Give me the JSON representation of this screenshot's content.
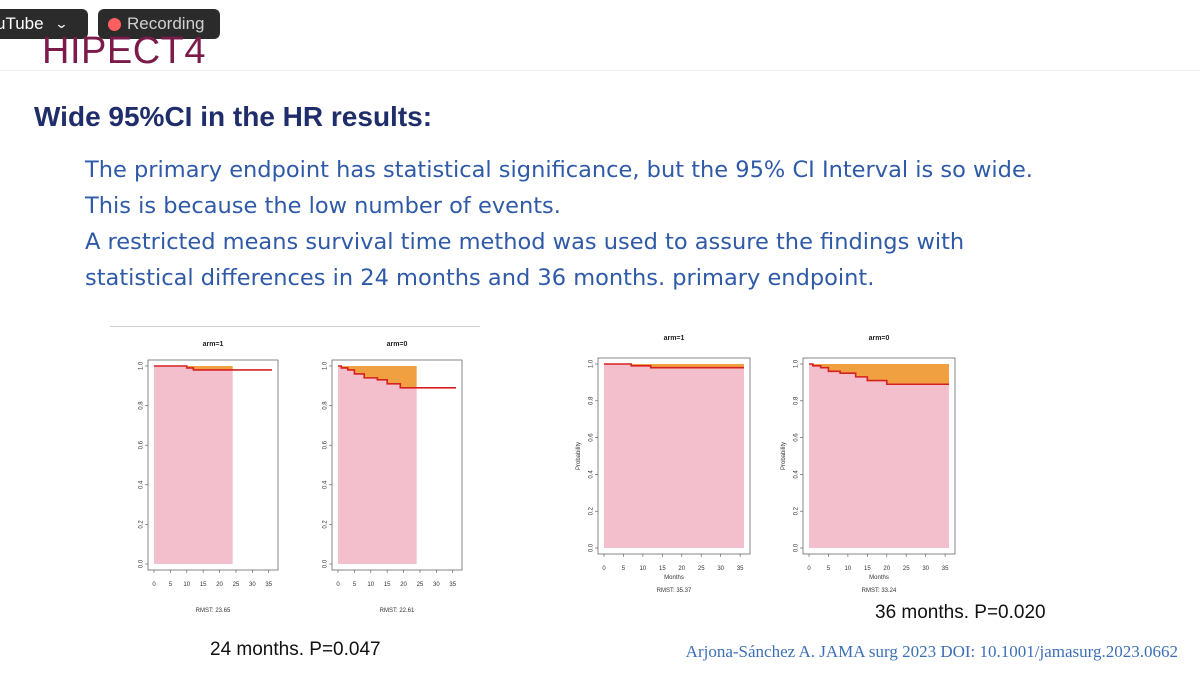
{
  "overlay": {
    "app_label": "uTube",
    "recording_label": "Recording",
    "accent_red": "#ff5f5f"
  },
  "slide": {
    "title": "HIPECT4",
    "heading": "Wide 95%CI in the HR results:",
    "lines": [
      "The primary endpoint has statistical significance, but the 95% CI Interval is so wide.",
      "This is because the low number of events.",
      "A restricted means survival time method was used to assure the findings with",
      "statistical differences in 24 months and 36 months. primary endpoint."
    ],
    "caption_24": "24 months. P=0.047",
    "caption_36": "36 months. P=0.020",
    "citation": "Arjona-Sánchez A. JAMA surg 2023 DOI: 10.1001/jamasurg.2023.0662",
    "colors": {
      "title": "#7a1b4a",
      "heading": "#1f2d6b",
      "body": "#2f5aa8",
      "fill_pink": "#f4bfcd",
      "fill_orange": "#f0a040",
      "curve_red": "#d62020"
    }
  },
  "chart_data": [
    {
      "type": "area",
      "title": "arm=1",
      "xlabel": "",
      "ylabel": "",
      "note": "RMST: 23.65",
      "xlim": [
        0,
        36
      ],
      "ylim": [
        0,
        1
      ],
      "x_ticks": [
        0,
        5,
        10,
        15,
        20,
        25,
        30,
        35
      ],
      "y_ticks": [
        "0.0",
        "0.2",
        "0.4",
        "0.6",
        "0.8",
        "1.0"
      ],
      "tau": 24,
      "steps": [
        [
          0,
          1.0
        ],
        [
          4,
          1.0
        ],
        [
          10,
          0.99
        ],
        [
          12,
          0.98
        ],
        [
          24,
          0.98
        ],
        [
          36,
          0.98
        ]
      ]
    },
    {
      "type": "area",
      "title": "arm=0",
      "xlabel": "",
      "ylabel": "",
      "note": "RMST: 22.61",
      "xlim": [
        0,
        36
      ],
      "ylim": [
        0,
        1
      ],
      "x_ticks": [
        0,
        5,
        10,
        15,
        20,
        25,
        30,
        35
      ],
      "y_ticks": [
        "0.0",
        "0.2",
        "0.4",
        "0.6",
        "0.8",
        "1.0"
      ],
      "tau": 24,
      "steps": [
        [
          0,
          1.0
        ],
        [
          1,
          0.99
        ],
        [
          3,
          0.98
        ],
        [
          5,
          0.96
        ],
        [
          8,
          0.94
        ],
        [
          12,
          0.93
        ],
        [
          15,
          0.91
        ],
        [
          19,
          0.89
        ],
        [
          24,
          0.89
        ],
        [
          36,
          0.89
        ]
      ]
    },
    {
      "type": "area",
      "title": "arm=1",
      "xlabel": "Months",
      "ylabel": "Probability",
      "note": "RMST: 35.37",
      "xlim": [
        0,
        36
      ],
      "ylim": [
        0,
        1
      ],
      "x_ticks": [
        0,
        5,
        10,
        15,
        20,
        25,
        30,
        35
      ],
      "y_ticks": [
        "0.0",
        "0.2",
        "0.4",
        "0.6",
        "0.8",
        "1.0"
      ],
      "tau": 36,
      "steps": [
        [
          0,
          1.0
        ],
        [
          7,
          1.0
        ],
        [
          7,
          0.99
        ],
        [
          12,
          0.98
        ],
        [
          36,
          0.98
        ]
      ]
    },
    {
      "type": "area",
      "title": "arm=0",
      "xlabel": "Months",
      "ylabel": "Probability",
      "note": "RMST: 33.24",
      "xlim": [
        0,
        36
      ],
      "ylim": [
        0,
        1
      ],
      "x_ticks": [
        0,
        5,
        10,
        15,
        20,
        25,
        30,
        35
      ],
      "y_ticks": [
        "0.0",
        "0.2",
        "0.4",
        "0.6",
        "0.8",
        "1.0"
      ],
      "tau": 36,
      "steps": [
        [
          0,
          1.0
        ],
        [
          1,
          0.99
        ],
        [
          3,
          0.98
        ],
        [
          5,
          0.96
        ],
        [
          8,
          0.95
        ],
        [
          12,
          0.93
        ],
        [
          15,
          0.91
        ],
        [
          20,
          0.89
        ],
        [
          36,
          0.89
        ]
      ]
    }
  ]
}
